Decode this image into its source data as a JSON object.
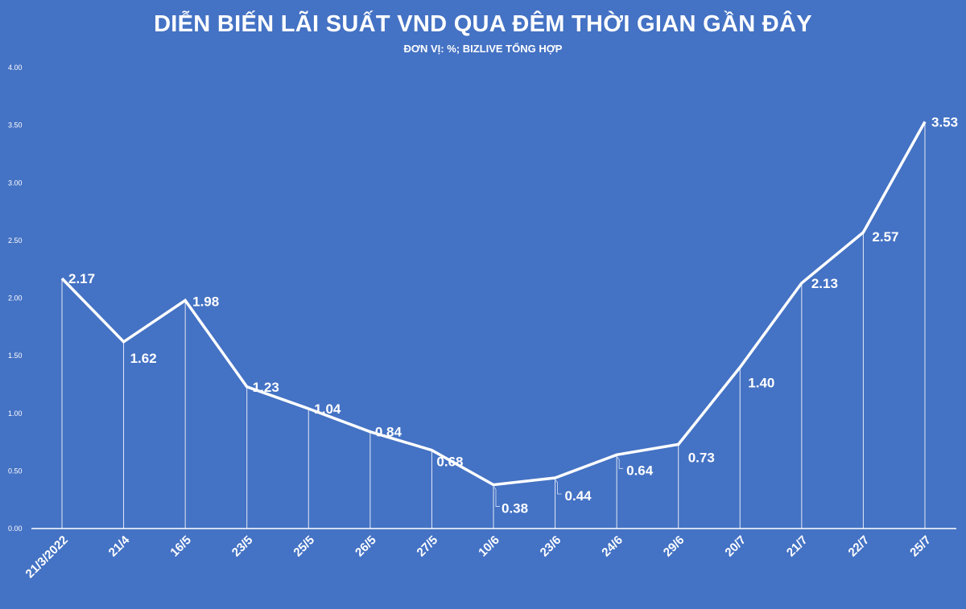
{
  "header": {
    "title": "DIỄN BIẾN LÃI SUẤT VND QUA ĐÊM THỜI GIAN GẦN ĐÂY",
    "subtitle": "ĐƠN VỊ: %; BIZLIVE TỔNG HỢP"
  },
  "colors": {
    "background": "#4472C4",
    "line": "#ffffff",
    "text": "#ffffff"
  },
  "chart_data": {
    "type": "line",
    "title": "DIỄN BIẾN LÃI SUẤT VND QUA ĐÊM THỜI GIAN GẦN ĐÂY",
    "subtitle": "ĐƠN VỊ: %; BIZLIVE TỔNG HỢP",
    "xlabel": "",
    "ylabel": "",
    "ylim": [
      0,
      4
    ],
    "yticks": [
      "0.00",
      "0.50",
      "1.00",
      "1.50",
      "2.00",
      "2.50",
      "3.00",
      "3.50",
      "4.00"
    ],
    "grid": false,
    "drop_lines": true,
    "legend": null,
    "categories": [
      "21/3/2022",
      "21/4",
      "16/5",
      "23/5",
      "25/5",
      "26/5",
      "27/5",
      "10/6",
      "23/6",
      "24/6",
      "29/6",
      "20/7",
      "21/7",
      "22/7",
      "25/7"
    ],
    "series": [
      {
        "name": "Lãi suất VND qua đêm",
        "values": [
          2.17,
          1.62,
          1.98,
          1.23,
          1.04,
          0.84,
          0.68,
          0.38,
          0.44,
          0.64,
          0.73,
          1.4,
          2.13,
          2.57,
          3.53
        ],
        "labels": [
          "2.17",
          "1.62",
          "1.98",
          "1.23",
          "1.04",
          "0.84",
          "0.68",
          "0.38",
          "0.44",
          "0.64",
          "0.73",
          "1.40",
          "2.13",
          "2.57",
          "3.53"
        ]
      }
    ]
  }
}
